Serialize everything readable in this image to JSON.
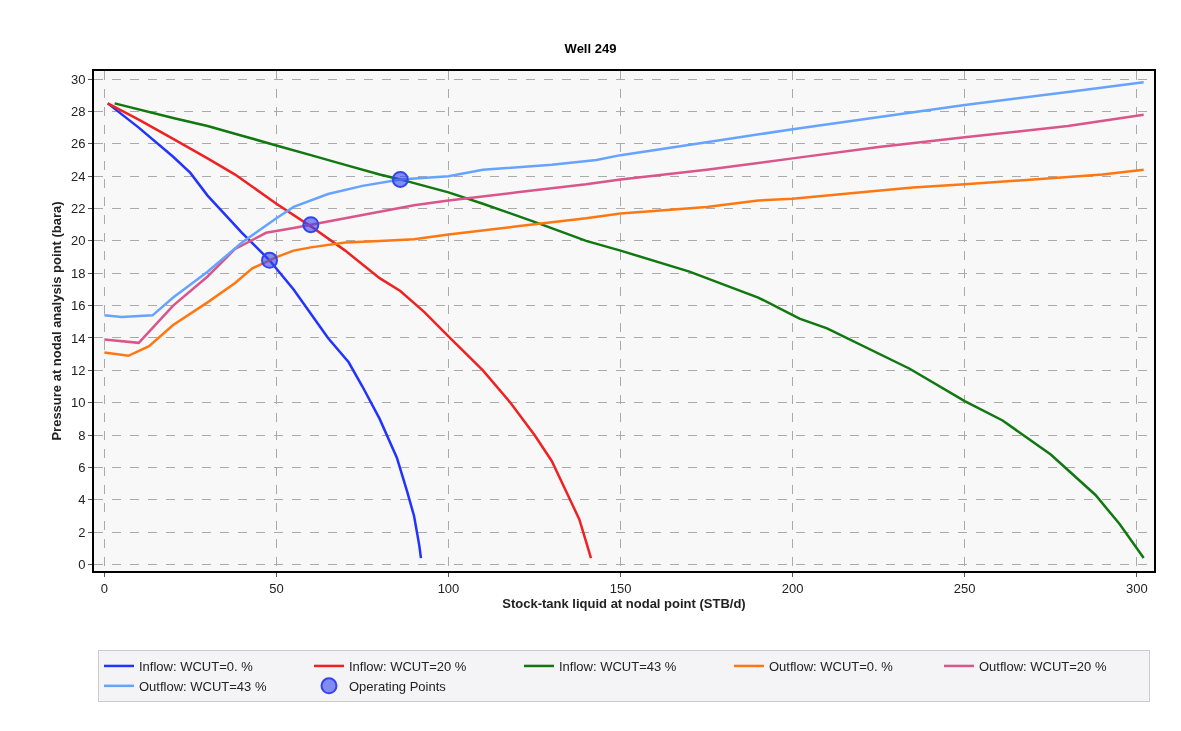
{
  "chart_data": {
    "type": "line",
    "title": "Well 249",
    "xlabel": "Stock-tank liquid at nodal point (STB/d)",
    "ylabel": "Pressure at nodal analysis point (bara)",
    "xlim": [
      -3,
      305
    ],
    "ylim": [
      -0.4,
      30.5
    ],
    "xticks": [
      0,
      50,
      100,
      150,
      200,
      250,
      300
    ],
    "yticks": [
      0,
      2,
      4,
      6,
      8,
      10,
      12,
      14,
      16,
      18,
      20,
      22,
      24,
      26,
      28,
      30
    ],
    "grid": true,
    "legend": "bottom",
    "line_style": "solid",
    "marker": "none",
    "series": [
      {
        "name": "Inflow: WCUT=0. %",
        "color": "#2233ff",
        "x": [
          1,
          10,
          20,
          25,
          30,
          40,
          48,
          55,
          60,
          65,
          71,
          75,
          80,
          85,
          88,
          90,
          91.5,
          92
        ],
        "values": [
          28.5,
          27,
          25.2,
          24.2,
          22.8,
          20.5,
          18.8,
          17,
          15.5,
          14,
          12.5,
          11,
          9,
          6.6,
          4.5,
          3,
          1.2,
          0.4
        ]
      },
      {
        "name": "Inflow: WCUT=20 %",
        "color": "#ee2222",
        "x": [
          1,
          10,
          20,
          30,
          38,
          50,
          60,
          70,
          80,
          86,
          93,
          100,
          110,
          118,
          125,
          130,
          134,
          138,
          140,
          141.4
        ],
        "values": [
          28.5,
          27.5,
          26.3,
          25.1,
          24.1,
          22.3,
          20.9,
          19.4,
          17.7,
          16.9,
          15.6,
          14.1,
          12,
          10,
          8,
          6.4,
          4.6,
          2.8,
          1.4,
          0.4
        ]
      },
      {
        "name": "Inflow: WCUT=43 %",
        "color": "#117711",
        "x": [
          3,
          20,
          30,
          40,
          50,
          60,
          70,
          80,
          86,
          100,
          110,
          126,
          140,
          150,
          170,
          190,
          202,
          210,
          234,
          250,
          261,
          275,
          288,
          295,
          302
        ],
        "values": [
          28.5,
          27.6,
          27.1,
          26.5,
          25.9,
          25.3,
          24.7,
          24.1,
          23.8,
          23,
          22.3,
          21.1,
          20,
          19.4,
          18.1,
          16.5,
          15.2,
          14.6,
          12.1,
          10.1,
          8.9,
          6.8,
          4.3,
          2.5,
          0.4
        ]
      },
      {
        "name": "Outflow: WCUT=0. %",
        "color": "#ff7711",
        "x": [
          0,
          7,
          13,
          20,
          30,
          38,
          43,
          50,
          55,
          60,
          70,
          80,
          90,
          100,
          120,
          140,
          150,
          175,
          190,
          200,
          220,
          235,
          250,
          270,
          290,
          302
        ],
        "values": [
          13.1,
          12.9,
          13.5,
          14.8,
          16.2,
          17.4,
          18.3,
          19,
          19.4,
          19.6,
          19.9,
          20,
          20.1,
          20.4,
          20.9,
          21.4,
          21.7,
          22.1,
          22.5,
          22.6,
          23,
          23.3,
          23.5,
          23.8,
          24.1,
          24.4
        ]
      },
      {
        "name": "Outflow: WCUT=20 %",
        "color": "#d9558a",
        "x": [
          0,
          10,
          20,
          30,
          38,
          47,
          55,
          60,
          70,
          80,
          90,
          100,
          120,
          140,
          150,
          175,
          200,
          225,
          250,
          280,
          302
        ],
        "values": [
          13.9,
          13.7,
          16,
          17.8,
          19.5,
          20.5,
          20.8,
          21,
          21.4,
          21.8,
          22.2,
          22.5,
          23,
          23.5,
          23.8,
          24.4,
          25.1,
          25.8,
          26.4,
          27.1,
          27.8
        ]
      },
      {
        "name": "Outflow: WCUT=43 %",
        "color": "#66a3ff",
        "x": [
          0,
          5,
          14,
          20,
          30,
          40,
          50,
          55,
          65,
          75,
          86,
          100,
          110,
          130,
          143,
          150,
          175,
          200,
          250,
          280,
          302
        ],
        "values": [
          15.4,
          15.3,
          15.4,
          16.5,
          18.1,
          19.9,
          21.4,
          22.1,
          22.9,
          23.4,
          23.8,
          24,
          24.4,
          24.7,
          25,
          25.3,
          26.1,
          26.9,
          28.4,
          29.2,
          29.8
        ]
      },
      {
        "name": "Operating Points",
        "type": "scatter",
        "marker": "circle",
        "color": "#3344ee",
        "x": [
          48,
          60,
          86
        ],
        "values": [
          18.8,
          21,
          23.8
        ]
      }
    ]
  }
}
